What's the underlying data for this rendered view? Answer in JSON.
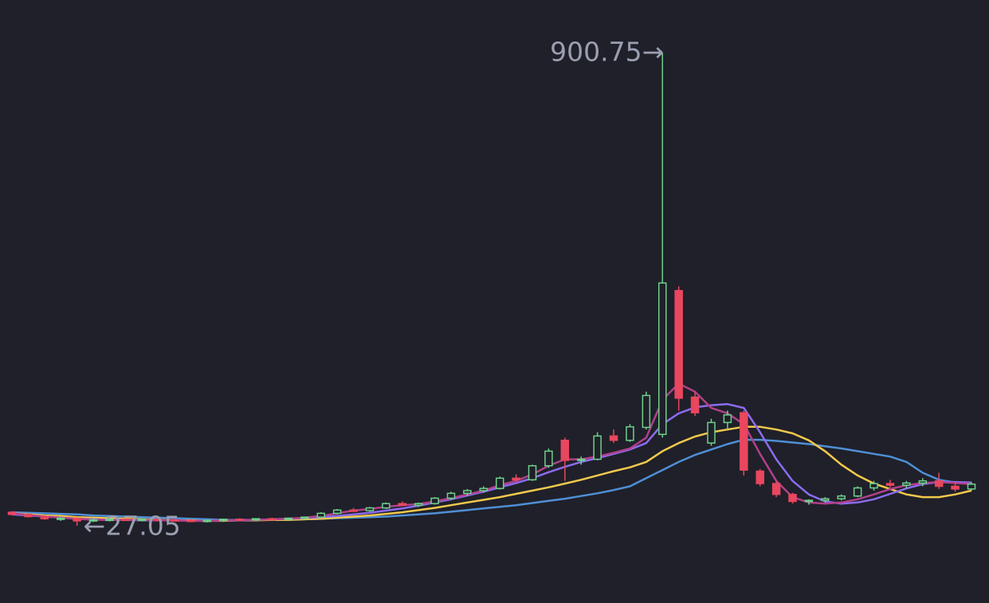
{
  "chart_data": {
    "type": "candlestick",
    "up_color": "#6fd08c",
    "down_color": "#e8475f",
    "annotations": {
      "high": {
        "value": 900.75,
        "label": "900.75→"
      },
      "low": {
        "value": 27.05,
        "label": "←27.05"
      }
    },
    "open": [
      52,
      48,
      44,
      40,
      41,
      36,
      38,
      39,
      37,
      39,
      38,
      37,
      36,
      37,
      39,
      38,
      40,
      39,
      41,
      43,
      50,
      56,
      55,
      60,
      68,
      65,
      68,
      78,
      87,
      92,
      96,
      115,
      112,
      138,
      185,
      148,
      150,
      193,
      185,
      209,
      196,
      462,
      265,
      180,
      218,
      236,
      128,
      105,
      85,
      72,
      74,
      77,
      82,
      97,
      105,
      102,
      106,
      110,
      100,
      95
    ],
    "high": [
      54,
      50,
      46,
      43,
      42,
      40,
      41,
      41,
      40,
      41,
      40,
      39,
      38,
      40,
      41,
      41,
      42,
      42,
      44,
      52,
      58,
      60,
      62,
      70,
      72,
      70,
      80,
      90,
      95,
      100,
      118,
      122,
      140,
      170,
      190,
      155,
      200,
      205,
      215,
      275,
      900.75,
      470,
      275,
      225,
      240,
      240,
      132,
      110,
      88,
      76,
      80,
      85,
      100,
      110,
      112,
      110,
      115,
      125,
      108,
      108
    ],
    "low": [
      46,
      42,
      38,
      36,
      27.05,
      34,
      35,
      36,
      35,
      36,
      35,
      34,
      33,
      35,
      36,
      36,
      37,
      37,
      39,
      42,
      48,
      52,
      53,
      58,
      63,
      62,
      66,
      75,
      82,
      88,
      94,
      108,
      110,
      134,
      110,
      140,
      148,
      180,
      182,
      205,
      190,
      240,
      230,
      175,
      205,
      120,
      100,
      80,
      68,
      66,
      70,
      74,
      80,
      92,
      98,
      96,
      100,
      95,
      90,
      92
    ],
    "close": [
      48,
      44,
      40,
      41,
      36,
      38,
      39,
      37,
      39,
      38,
      37,
      36,
      37,
      39,
      38,
      40,
      39,
      41,
      43,
      50,
      56,
      55,
      60,
      68,
      65,
      68,
      78,
      87,
      92,
      96,
      115,
      112,
      138,
      165,
      148,
      150,
      193,
      185,
      210,
      268,
      476,
      263,
      236,
      218,
      232,
      130,
      105,
      85,
      72,
      74,
      77,
      82,
      97,
      105,
      102,
      106,
      110,
      100,
      95,
      104
    ],
    "series": [
      {
        "color": "#4f8fd6",
        "values": [
          52,
          51,
          50,
          49,
          48,
          46,
          45,
          44,
          43,
          42,
          41,
          40,
          39,
          38,
          38,
          38,
          38,
          38,
          39,
          40,
          41,
          42,
          43,
          44,
          46,
          48,
          50,
          53,
          56,
          59,
          62,
          65,
          69,
          73,
          77,
          82,
          87,
          93,
          100,
          115,
          130,
          145,
          158,
          168,
          178,
          186,
          186,
          184,
          181,
          178,
          174,
          170,
          165,
          160,
          155,
          145,
          125,
          112,
          107,
          105
        ]
      },
      {
        "color": "#f2c94c",
        "values": [
          50,
          48,
          46,
          45,
          43,
          42,
          41,
          40,
          39,
          38,
          37,
          37,
          36,
          36,
          37,
          37,
          38,
          38,
          39,
          40,
          42,
          44,
          46,
          49,
          52,
          56,
          60,
          65,
          70,
          75,
          80,
          86,
          92,
          98,
          105,
          112,
          120,
          128,
          135,
          145,
          165,
          180,
          192,
          200,
          205,
          210,
          210,
          205,
          198,
          185,
          165,
          140,
          120,
          105,
          95,
          85,
          80,
          80,
          85,
          92
        ]
      },
      {
        "color": "#8c6cf0",
        "values": [
          48,
          46,
          44,
          42,
          40,
          39,
          38,
          38,
          37,
          37,
          37,
          36,
          36,
          37,
          37,
          38,
          39,
          40,
          41,
          43,
          45,
          48,
          51,
          55,
          59,
          64,
          70,
          76,
          83,
          90,
          98,
          106,
          115,
          126,
          136,
          145,
          152,
          160,
          168,
          180,
          215,
          235,
          246,
          250,
          252,
          245,
          200,
          150,
          110,
          85,
          72,
          68,
          70,
          76,
          86,
          96,
          104,
          108,
          108,
          107
        ]
      },
      {
        "color": "#b0408a",
        "values": [
          50,
          47,
          44,
          42,
          40,
          38,
          38,
          38,
          38,
          37,
          37,
          36,
          36,
          37,
          38,
          38,
          39,
          40,
          42,
          45,
          50,
          55,
          58,
          62,
          65,
          67,
          72,
          78,
          85,
          92,
          102,
          110,
          122,
          138,
          150,
          150,
          155,
          162,
          170,
          190,
          260,
          290,
          275,
          245,
          235,
          215,
          160,
          110,
          80,
          70,
          68,
          70,
          76,
          85,
          95,
          102,
          106,
          108,
          106,
          104
        ]
      }
    ]
  }
}
